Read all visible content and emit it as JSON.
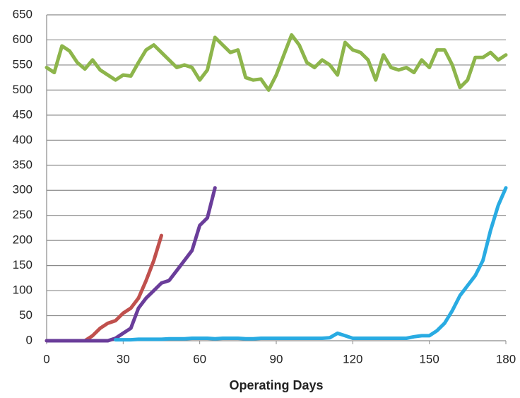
{
  "chart_data": {
    "type": "line",
    "x_label": "Operating Days",
    "x": [
      0,
      3,
      6,
      9,
      12,
      15,
      18,
      21,
      24,
      27,
      30,
      33,
      36,
      39,
      42,
      45,
      48,
      51,
      54,
      57,
      60,
      63,
      66,
      69,
      72,
      75,
      78,
      81,
      84,
      87,
      90,
      93,
      96,
      99,
      102,
      105,
      108,
      111,
      114,
      117,
      120,
      123,
      126,
      129,
      132,
      135,
      138,
      141,
      144,
      147,
      150,
      153,
      156,
      159,
      162,
      165,
      168,
      171,
      174,
      177,
      180
    ],
    "series": [
      {
        "color": "#8db54b",
        "values": [
          545,
          535,
          588,
          578,
          555,
          542,
          560,
          540,
          530,
          520,
          530,
          528,
          555,
          580,
          590,
          575,
          560,
          545,
          550,
          545,
          520,
          540,
          605,
          590,
          575,
          580,
          525,
          520,
          522,
          500,
          530,
          570,
          610,
          590,
          555,
          545,
          560,
          550,
          530,
          595,
          580,
          575,
          560,
          520,
          570,
          545,
          540,
          545,
          535,
          560,
          545,
          580,
          580,
          550,
          505,
          520,
          565,
          565,
          575,
          560,
          570
        ]
      },
      {
        "color": "#c0504d",
        "values": [
          0,
          0,
          0,
          0,
          0,
          0,
          10,
          25,
          35,
          40,
          55,
          65,
          85,
          120,
          160,
          210,
          null,
          null,
          null,
          null,
          null,
          null,
          null,
          null,
          null,
          null,
          null,
          null,
          null,
          null,
          null,
          null,
          null,
          null,
          null,
          null,
          null,
          null,
          null,
          null,
          null,
          null,
          null,
          null,
          null,
          null,
          null,
          null,
          null,
          null,
          null,
          null,
          null,
          null,
          null,
          null,
          null,
          null,
          null,
          null,
          null
        ]
      },
      {
        "color": "#6a3d9a",
        "values": [
          0,
          0,
          0,
          0,
          0,
          0,
          0,
          0,
          0,
          5,
          15,
          25,
          65,
          85,
          100,
          115,
          120,
          140,
          160,
          180,
          230,
          245,
          305,
          null,
          null,
          null,
          null,
          null,
          null,
          null,
          null,
          null,
          null,
          null,
          null,
          null,
          null,
          null,
          null,
          null,
          null,
          null,
          null,
          null,
          null,
          null,
          null,
          null,
          null,
          null,
          null,
          null,
          null,
          null,
          null,
          null,
          null,
          null,
          null,
          null,
          null
        ]
      },
      {
        "color": "#29abe2",
        "values": [
          null,
          null,
          null,
          null,
          null,
          null,
          null,
          null,
          null,
          2,
          2,
          2,
          3,
          3,
          3,
          3,
          4,
          4,
          4,
          5,
          5,
          5,
          4,
          5,
          5,
          5,
          4,
          4,
          5,
          5,
          5,
          5,
          5,
          5,
          5,
          5,
          5,
          6,
          15,
          10,
          5,
          5,
          5,
          5,
          5,
          5,
          5,
          5,
          8,
          10,
          10,
          20,
          35,
          60,
          90,
          110,
          130,
          160,
          220,
          270,
          305
        ]
      }
    ],
    "xlim": [
      0,
      180
    ],
    "xticks": [
      0,
      30,
      60,
      90,
      120,
      150,
      180
    ],
    "ylim": [
      0,
      650
    ],
    "yticks": [
      0,
      50,
      100,
      150,
      200,
      250,
      300,
      350,
      400,
      450,
      500,
      550,
      600,
      650
    ],
    "grid": true
  }
}
